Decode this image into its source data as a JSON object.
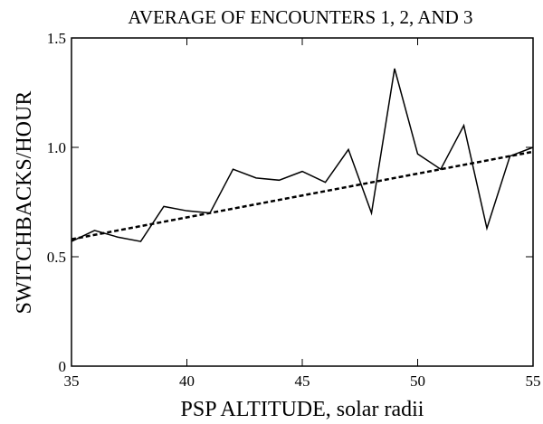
{
  "chart_data": {
    "type": "line",
    "title": "AVERAGE OF ENCOUNTERS 1, 2, AND 3",
    "x_label": "PSP ALTITUDE, solar radii",
    "y_label": "SWITCHBACKS/HOUR",
    "x": [
      35,
      36,
      37,
      38,
      39,
      40,
      41,
      42,
      43,
      44,
      45,
      46,
      47,
      48,
      49,
      50,
      51,
      52,
      53,
      54,
      55
    ],
    "series": [
      {
        "color": "#000000",
        "values": [
          0.57,
          0.62,
          0.59,
          0.57,
          0.73,
          0.71,
          0.7,
          0.9,
          0.86,
          0.85,
          0.89,
          0.84,
          0.99,
          0.7,
          1.36,
          0.97,
          0.9,
          1.1,
          0.63,
          0.96,
          1.0
        ]
      }
    ],
    "trend": {
      "x": [
        35,
        55
      ],
      "values": [
        0.58,
        0.98
      ],
      "color": "#000000"
    },
    "xlim": [
      35,
      55
    ],
    "xticks": [
      35,
      40,
      45,
      50,
      55
    ],
    "ylim": [
      0,
      1.5
    ],
    "yticks": [
      0,
      0.5,
      {
        "value": 1.0,
        "label": "1.0"
      },
      1.5
    ]
  }
}
